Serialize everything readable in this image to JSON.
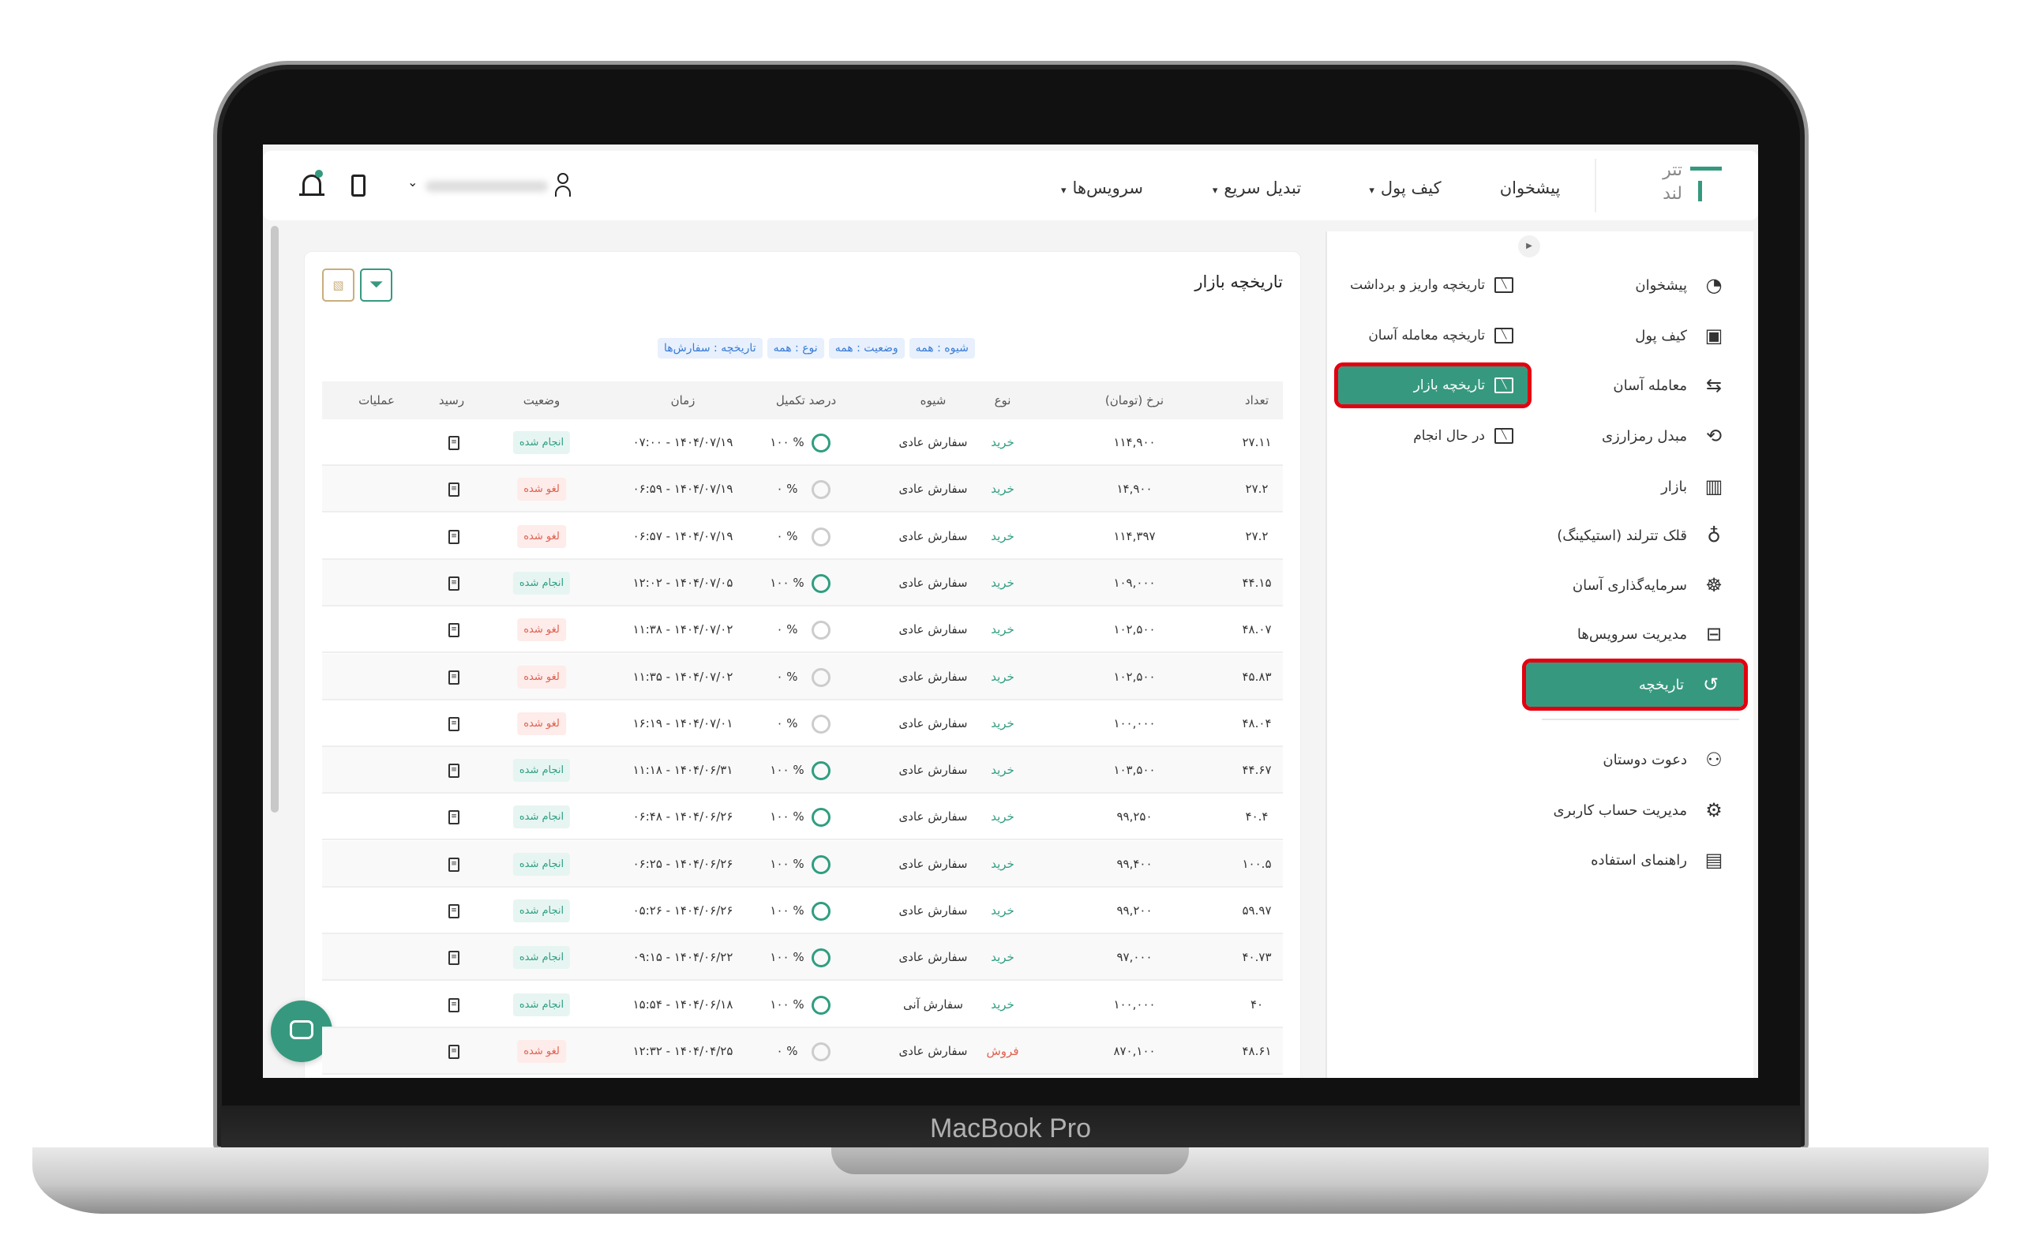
{
  "device": {
    "label": "MacBook Pro"
  },
  "colors": {
    "accent": "#36997f",
    "highlight": "#e3000f",
    "cancel": "#e0604f",
    "done": "#2f9e80",
    "chip": "#3a7bd5"
  },
  "logo": {
    "line1": "تتر",
    "line2": "لند"
  },
  "header": {
    "nav": [
      {
        "label": "پیشخوان"
      },
      {
        "label": "کیف پول",
        "chevron": "▾"
      },
      {
        "label": "تبدیل سریع",
        "chevron": "▾"
      },
      {
        "label": "سرویس‌ها",
        "chevron": "▾"
      }
    ],
    "icons": [
      "bell-icon",
      "mobile-icon",
      "chevron-down-icon",
      "user-icon"
    ]
  },
  "sidebar": {
    "items": [
      {
        "label": "پیشخوان",
        "icon": "◔"
      },
      {
        "label": "کیف پول",
        "icon": "▣"
      },
      {
        "label": "معامله آسان",
        "icon": "⇆"
      },
      {
        "label": "مبدل رمزارزی",
        "icon": "⟲"
      },
      {
        "label": "بازار",
        "icon": "▥"
      },
      {
        "label": "قلک تترلند (استیکینگ)",
        "icon": "♁"
      },
      {
        "label": "سرمایه‌گذاری آسان",
        "icon": "☸"
      },
      {
        "label": "مدیریت سرویس‌ها",
        "icon": "⊟"
      },
      {
        "label": "تاریخچه",
        "icon": "↺",
        "active": true
      },
      {
        "label": "دعوت دوستان",
        "icon": "⚇"
      },
      {
        "label": "مدیریت حساب کاربری",
        "icon": "⚙"
      },
      {
        "label": "راهنمای استفاده",
        "icon": "▤"
      }
    ]
  },
  "submenu": {
    "items": [
      {
        "label": "تاریخچه واریز و برداشت"
      },
      {
        "label": "تاریخچه معامله آسان"
      },
      {
        "label": "تاریخچه بازار",
        "active": true
      },
      {
        "label": "در حال انجام"
      }
    ]
  },
  "main": {
    "title": "تاریخچه بازار",
    "filters": [
      "تاریخچه : سفارش‌ها",
      "نوع : همه",
      "وضعیت : همه",
      "شیوه : همه"
    ],
    "columns": [
      "تعداد",
      "نرخ (تومان)",
      "نوع",
      "شیوه",
      "درصد تکمیل",
      "زمان",
      "وضعیت",
      "رسید",
      "عملیات"
    ],
    "rows": [
      {
        "count": "۲۷.۱۱",
        "rate": "۱۱۴,۹۰۰",
        "type": "خرید",
        "method": "سفارش عادی",
        "percent": "۱۰۰ %",
        "fill": 100,
        "time": "۱۴۰۴/۰۷/۱۹ - ۰۷:۰۰",
        "status": "انجام شده"
      },
      {
        "count": "۲۷.۲",
        "rate": "۱۴,۹۰۰",
        "type": "خرید",
        "method": "سفارش عادی",
        "percent": "۰ %",
        "fill": 0,
        "time": "۱۴۰۴/۰۷/۱۹ - ۰۶:۵۹",
        "status": "لغو شده"
      },
      {
        "count": "۲۷.۲",
        "rate": "۱۱۴,۳۹۷",
        "type": "خرید",
        "method": "سفارش عادی",
        "percent": "۰ %",
        "fill": 0,
        "time": "۱۴۰۴/۰۷/۱۹ - ۰۶:۵۷",
        "status": "لغو شده"
      },
      {
        "count": "۴۴.۱۵",
        "rate": "۱۰۹,۰۰۰",
        "type": "خرید",
        "method": "سفارش عادی",
        "percent": "۱۰۰ %",
        "fill": 100,
        "time": "۱۴۰۴/۰۷/۰۵ - ۱۲:۰۲",
        "status": "انجام شده"
      },
      {
        "count": "۴۸.۰۷",
        "rate": "۱۰۲,۵۰۰",
        "type": "خرید",
        "method": "سفارش عادی",
        "percent": "۰ %",
        "fill": 0,
        "time": "۱۴۰۴/۰۷/۰۲ - ۱۱:۳۸",
        "status": "لغو شده"
      },
      {
        "count": "۴۵.۸۳",
        "rate": "۱۰۲,۵۰۰",
        "type": "خرید",
        "method": "سفارش عادی",
        "percent": "۰ %",
        "fill": 0,
        "time": "۱۴۰۴/۰۷/۰۲ - ۱۱:۳۵",
        "status": "لغو شده"
      },
      {
        "count": "۴۸.۰۴",
        "rate": "۱۰۰,۰۰۰",
        "type": "خرید",
        "method": "سفارش عادی",
        "percent": "۰ %",
        "fill": 0,
        "time": "۱۴۰۴/۰۷/۰۱ - ۱۶:۱۹",
        "status": "لغو شده"
      },
      {
        "count": "۴۴.۶۷",
        "rate": "۱۰۳,۵۰۰",
        "type": "خرید",
        "method": "سفارش عادی",
        "percent": "۱۰۰ %",
        "fill": 100,
        "time": "۱۴۰۴/۰۶/۳۱ - ۱۱:۱۸",
        "status": "انجام شده"
      },
      {
        "count": "۴۰.۴",
        "rate": "۹۹,۲۵۰",
        "type": "خرید",
        "method": "سفارش عادی",
        "percent": "۱۰۰ %",
        "fill": 100,
        "time": "۱۴۰۴/۰۶/۲۶ - ۰۶:۴۸",
        "status": "انجام شده"
      },
      {
        "count": "۱۰۰.۵",
        "rate": "۹۹,۴۰۰",
        "type": "خرید",
        "method": "سفارش عادی",
        "percent": "۱۰۰ %",
        "fill": 100,
        "time": "۱۴۰۴/۰۶/۲۶ - ۰۶:۲۵",
        "status": "انجام شده"
      },
      {
        "count": "۵۹.۹۷",
        "rate": "۹۹,۲۰۰",
        "type": "خرید",
        "method": "سفارش عادی",
        "percent": "۱۰۰ %",
        "fill": 100,
        "time": "۱۴۰۴/۰۶/۲۶ - ۰۵:۲۶",
        "status": "انجام شده"
      },
      {
        "count": "۴۰.۷۳",
        "rate": "۹۷,۰۰۰",
        "type": "خرید",
        "method": "سفارش عادی",
        "percent": "۱۰۰ %",
        "fill": 100,
        "time": "۱۴۰۴/۰۶/۲۲ - ۰۹:۱۵",
        "status": "انجام شده"
      },
      {
        "count": "۴۰",
        "rate": "۱۰۰,۰۰۰",
        "type": "خرید",
        "method": "سفارش آنی",
        "percent": "۱۰۰ %",
        "fill": 100,
        "time": "۱۴۰۴/۰۶/۱۸ - ۱۵:۵۴",
        "status": "انجام شده"
      },
      {
        "count": "۴۸.۶۱",
        "rate": "۸۷۰,۱۰۰",
        "type": "فروش",
        "method": "سفارش عادی",
        "percent": "۰ %",
        "fill": 0,
        "time": "۱۴۰۴/۰۴/۲۵ - ۱۲:۳۲",
        "status": "لغو شده"
      }
    ]
  }
}
